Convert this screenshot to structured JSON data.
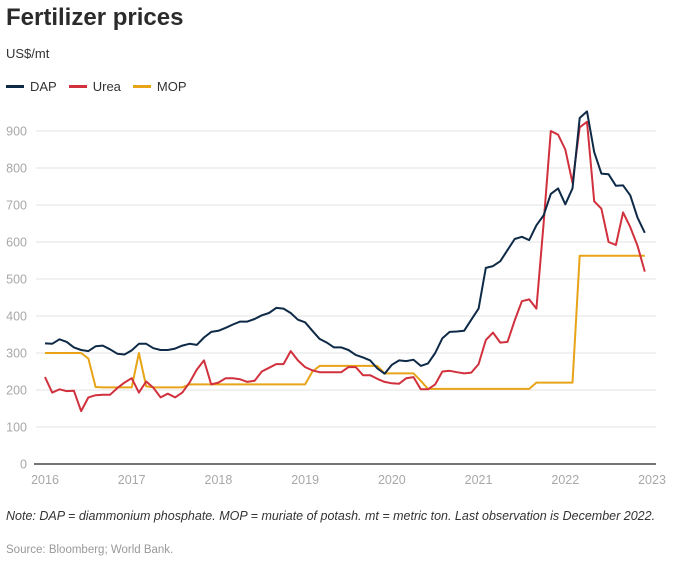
{
  "header": {
    "title": "Fertilizer prices",
    "unit": "US$/mt"
  },
  "footer": {
    "note": "Note: DAP = diammonium phosphate. MOP = muriate of potash. mt = metric ton. Last observation is December 2022.",
    "source": "Source: Bloomberg; World Bank."
  },
  "chart_data": {
    "type": "line",
    "title": "Fertilizer prices",
    "ylabel": "US$/mt",
    "xlabel": "",
    "ylim": [
      0,
      900
    ],
    "xlim": [
      2016,
      2023
    ],
    "yticks": [
      "0",
      "100",
      "200",
      "300",
      "400",
      "500",
      "600",
      "700",
      "800",
      "900"
    ],
    "xticks": [
      "2016",
      "2017",
      "2018",
      "2019",
      "2020",
      "2021",
      "2022",
      "2023"
    ],
    "grid": true,
    "legend": "top-left",
    "x_start": "2016-01",
    "frequency": "monthly",
    "series": [
      {
        "name": "DAP",
        "color": "#0e2a47",
        "values": [
          326,
          325,
          337,
          330,
          315,
          308,
          305,
          318,
          320,
          310,
          298,
          296,
          307,
          325,
          325,
          313,
          308,
          308,
          312,
          320,
          325,
          322,
          342,
          357,
          360,
          368,
          377,
          385,
          385,
          392,
          402,
          408,
          422,
          420,
          408,
          390,
          383,
          360,
          338,
          328,
          315,
          315,
          308,
          295,
          288,
          280,
          258,
          244,
          268,
          280,
          278,
          282,
          265,
          272,
          300,
          340,
          357,
          358,
          360,
          390,
          420,
          530,
          535,
          548,
          578,
          608,
          614,
          605,
          645,
          672,
          730,
          745,
          702,
          745,
          935,
          953,
          843,
          785,
          783,
          752,
          753,
          726,
          666,
          625
        ],
        "end_value_note": "Dec 2022"
      },
      {
        "name": "Urea",
        "color": "#d1313d",
        "values": [
          235,
          193,
          202,
          197,
          198,
          143,
          180,
          186,
          187,
          187,
          205,
          220,
          232,
          193,
          223,
          206,
          180,
          190,
          180,
          193,
          220,
          255,
          280,
          215,
          220,
          232,
          232,
          229,
          222,
          225,
          250,
          260,
          270,
          270,
          305,
          280,
          262,
          253,
          248,
          248,
          248,
          248,
          262,
          262,
          240,
          240,
          230,
          222,
          218,
          217,
          232,
          235,
          202,
          202,
          215,
          250,
          252,
          248,
          245,
          247,
          270,
          335,
          355,
          328,
          330,
          388,
          440,
          445,
          420,
          650,
          900,
          890,
          850,
          760,
          910,
          925,
          710,
          690,
          600,
          592,
          680,
          640,
          590,
          520
        ]
      },
      {
        "name": "MOP",
        "color": "#e8a317",
        "values": [
          300,
          300,
          300,
          300,
          300,
          300,
          285,
          208,
          207,
          207,
          207,
          207,
          207,
          300,
          210,
          207,
          207,
          207,
          207,
          207,
          215,
          215,
          215,
          215,
          215,
          215,
          215,
          215,
          215,
          215,
          215,
          215,
          215,
          215,
          215,
          215,
          215,
          250,
          265,
          265,
          265,
          265,
          265,
          265,
          265,
          265,
          265,
          245,
          245,
          245,
          245,
          245,
          225,
          203,
          203,
          203,
          203,
          203,
          203,
          203,
          203,
          203,
          203,
          203,
          203,
          203,
          203,
          203,
          220,
          220,
          220,
          220,
          220,
          220,
          563,
          563,
          563,
          563,
          563,
          563,
          563,
          563,
          563,
          563
        ]
      }
    ]
  }
}
